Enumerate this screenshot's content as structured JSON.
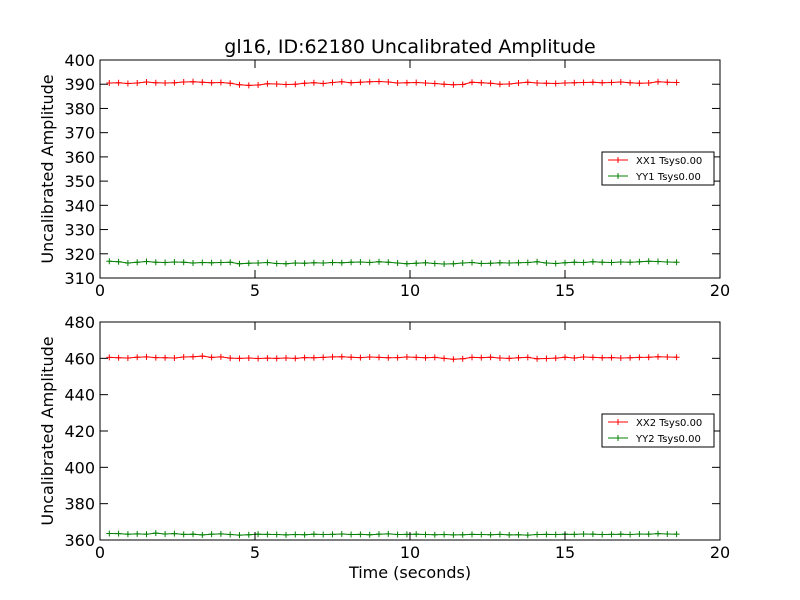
{
  "figure": {
    "title": "gl16, ID:62180 Uncalibrated Amplitude"
  },
  "chart_data": [
    {
      "type": "line",
      "title": "gl16, ID:62180 Uncalibrated Amplitude",
      "xlabel": "",
      "ylabel": "Uncalibrated Amplitude",
      "xlim": [
        0,
        20
      ],
      "ylim": [
        310,
        400
      ],
      "xticks": [
        "0",
        "5",
        "10",
        "15",
        "20"
      ],
      "yticks": [
        "310",
        "320",
        "330",
        "340",
        "350",
        "360",
        "370",
        "380",
        "390",
        "400"
      ],
      "grid": false,
      "legend_position": "right",
      "x": [
        0.3,
        0.6,
        0.9,
        1.2,
        1.5,
        1.8,
        2.1,
        2.4,
        2.7,
        3.0,
        3.3,
        3.6,
        3.9,
        4.2,
        4.5,
        4.8,
        5.1,
        5.4,
        5.7,
        6.0,
        6.3,
        6.6,
        6.9,
        7.2,
        7.5,
        7.8,
        8.1,
        8.4,
        8.7,
        9.0,
        9.3,
        9.6,
        9.9,
        10.2,
        10.5,
        10.8,
        11.1,
        11.4,
        11.7,
        12.0,
        12.3,
        12.6,
        12.9,
        13.2,
        13.5,
        13.8,
        14.1,
        14.4,
        14.7,
        15.0,
        15.3,
        15.6,
        15.9,
        16.2,
        16.5,
        16.8,
        17.1,
        17.4,
        17.7,
        18.0,
        18.3,
        18.6
      ],
      "series": [
        {
          "name": "XX1 Tsys0.00",
          "color": "#ff0000",
          "values": [
            390.5,
            390.6,
            390.3,
            390.5,
            390.9,
            390.6,
            390.5,
            390.6,
            390.9,
            391.0,
            390.8,
            390.6,
            390.7,
            390.4,
            389.8,
            389.5,
            389.7,
            390.2,
            390.1,
            389.9,
            390.0,
            390.4,
            390.6,
            390.3,
            390.7,
            391.0,
            390.6,
            390.8,
            391.0,
            391.1,
            390.9,
            390.5,
            390.6,
            390.7,
            390.5,
            390.3,
            390.0,
            389.8,
            389.9,
            390.8,
            390.6,
            390.4,
            390.0,
            390.1,
            390.5,
            390.8,
            390.5,
            390.4,
            390.3,
            390.5,
            390.6,
            390.7,
            390.8,
            390.6,
            390.7,
            390.9,
            390.6,
            390.4,
            390.5,
            391.0,
            390.8,
            390.7
          ]
        },
        {
          "name": "YY1 Tsys0.00",
          "color": "#008000",
          "values": [
            316.9,
            316.7,
            316.2,
            316.5,
            316.8,
            316.5,
            316.4,
            316.6,
            316.5,
            316.2,
            316.4,
            316.3,
            316.4,
            316.5,
            315.9,
            316.1,
            316.2,
            316.4,
            316.0,
            315.9,
            316.2,
            316.1,
            316.3,
            316.2,
            316.4,
            316.3,
            316.5,
            316.6,
            316.4,
            316.7,
            316.5,
            316.2,
            315.9,
            316.1,
            316.3,
            316.0,
            315.8,
            315.9,
            316.2,
            316.4,
            316.0,
            316.1,
            316.3,
            316.2,
            316.3,
            316.4,
            316.7,
            316.2,
            316.0,
            316.3,
            316.5,
            316.4,
            316.7,
            316.5,
            316.4,
            316.6,
            316.5,
            316.7,
            316.9,
            316.8,
            316.6,
            316.5
          ]
        }
      ]
    },
    {
      "type": "line",
      "title": "",
      "xlabel": "Time (seconds)",
      "ylabel": "Uncalibrated Amplitude",
      "xlim": [
        0,
        20
      ],
      "ylim": [
        360,
        480
      ],
      "xticks": [
        "0",
        "5",
        "10",
        "15",
        "20"
      ],
      "yticks": [
        "360",
        "380",
        "400",
        "420",
        "440",
        "460",
        "480"
      ],
      "grid": false,
      "legend_position": "right",
      "x": [
        0.3,
        0.6,
        0.9,
        1.2,
        1.5,
        1.8,
        2.1,
        2.4,
        2.7,
        3.0,
        3.3,
        3.6,
        3.9,
        4.2,
        4.5,
        4.8,
        5.1,
        5.4,
        5.7,
        6.0,
        6.3,
        6.6,
        6.9,
        7.2,
        7.5,
        7.8,
        8.1,
        8.4,
        8.7,
        9.0,
        9.3,
        9.6,
        9.9,
        10.2,
        10.5,
        10.8,
        11.1,
        11.4,
        11.7,
        12.0,
        12.3,
        12.6,
        12.9,
        13.2,
        13.5,
        13.8,
        14.1,
        14.4,
        14.7,
        15.0,
        15.3,
        15.6,
        15.9,
        16.2,
        16.5,
        16.8,
        17.1,
        17.4,
        17.7,
        18.0,
        18.3,
        18.6
      ],
      "series": [
        {
          "name": "XX2 Tsys0.00",
          "color": "#ff0000",
          "values": [
            460.5,
            460.3,
            460.2,
            460.6,
            460.8,
            460.4,
            460.3,
            460.2,
            460.7,
            460.9,
            461.2,
            460.5,
            460.8,
            460.1,
            460.0,
            460.2,
            459.9,
            460.1,
            460.0,
            460.2,
            460.0,
            460.4,
            460.3,
            460.5,
            460.8,
            460.9,
            460.6,
            460.4,
            460.7,
            460.5,
            460.3,
            460.4,
            460.7,
            460.5,
            460.3,
            460.5,
            460.0,
            459.5,
            459.8,
            460.5,
            460.4,
            460.6,
            460.2,
            460.0,
            460.3,
            460.5,
            459.8,
            459.9,
            460.1,
            460.6,
            460.2,
            460.7,
            460.5,
            460.3,
            460.4,
            460.2,
            460.3,
            460.5,
            460.6,
            460.9,
            460.7,
            460.6
          ]
        },
        {
          "name": "YY2 Tsys0.00",
          "color": "#008000",
          "values": [
            363.6,
            363.5,
            363.2,
            363.4,
            363.2,
            363.8,
            363.3,
            363.5,
            363.1,
            363.2,
            362.8,
            363.2,
            363.4,
            363.0,
            362.7,
            362.9,
            363.2,
            363.1,
            363.0,
            362.8,
            363.0,
            362.9,
            363.2,
            363.0,
            363.1,
            363.3,
            363.0,
            363.1,
            362.9,
            363.2,
            363.4,
            363.0,
            363.1,
            363.2,
            363.0,
            362.9,
            363.0,
            362.8,
            362.9,
            363.1,
            363.0,
            362.9,
            363.1,
            362.8,
            362.9,
            362.7,
            363.0,
            363.1,
            363.0,
            363.2,
            363.1,
            363.3,
            363.2,
            363.0,
            363.1,
            363.2,
            363.0,
            363.3,
            363.2,
            363.5,
            363.3,
            363.2
          ]
        }
      ]
    }
  ]
}
